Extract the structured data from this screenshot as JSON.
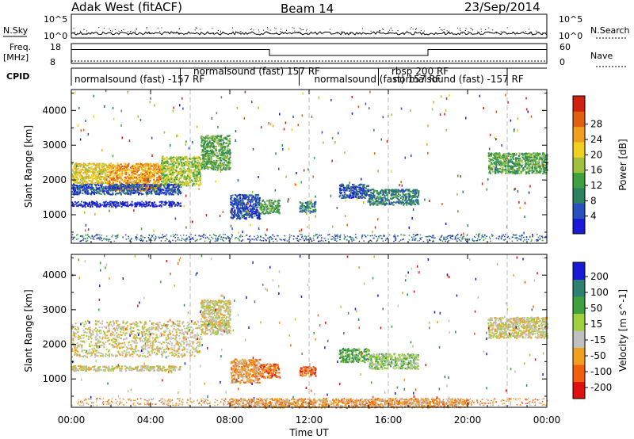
{
  "header": {
    "radar": "Adak West (fitACF)",
    "beam": "Beam 14",
    "date": "23/Sep/2014"
  },
  "panels": {
    "nsky_label": "N.Sky",
    "nsearch_label": "N.Search",
    "freq_label_1": "Freq.",
    "freq_label_2": "[MHz]",
    "nave_label": "Nave",
    "cpid_label": "CPID",
    "left_ticks_top": [
      "10^5",
      "10^0"
    ],
    "right_ticks_top": [
      "10^5",
      "10^0"
    ],
    "freq_ticks": [
      "18",
      "8"
    ],
    "nave_ticks": [
      "60",
      "0"
    ],
    "cpid_segments": [
      {
        "start": 0.0,
        "label": "normalsound (fast) -157 RF"
      },
      {
        "start": 5.5,
        "label": "normalsound (fast) 157 RF"
      },
      {
        "start": 11.5,
        "label": "normalsound (fast) 157 RF"
      },
      {
        "start": 15.5,
        "label": "rbsp 200 RF"
      },
      {
        "start": 15.5,
        "label": "normalsound (fast) -157 RF"
      }
    ],
    "freq_steps": [
      {
        "t0": 0,
        "t1": 10,
        "mhz": 15
      },
      {
        "t0": 10,
        "t1": 18,
        "mhz": 12
      },
      {
        "t0": 18,
        "t1": 24,
        "mhz": 15
      }
    ]
  },
  "chart_data": [
    {
      "type": "heatmap",
      "name": "power",
      "ylabel": "Slant Range [km]",
      "colorbar_label": "Power [dB]",
      "colorbar_ticks": [
        "4",
        "8",
        "12",
        "16",
        "20",
        "24",
        "28"
      ],
      "yticks": [
        "1000",
        "2000",
        "3000",
        "4000"
      ],
      "xlim": [
        0,
        24
      ],
      "ylim": [
        180,
        4600
      ],
      "colors": [
        "#1a1ad6",
        "#2a50c0",
        "#2e8060",
        "#40a040",
        "#a0c040",
        "#f0d020",
        "#f0a020",
        "#e06010",
        "#d02010"
      ],
      "regions": [
        {
          "t0": 0.0,
          "t1": 1.8,
          "r0": 1900,
          "r1": 2500,
          "v": 5
        },
        {
          "t0": 1.8,
          "t1": 4.5,
          "r0": 1700,
          "r1": 2500,
          "v": 6
        },
        {
          "t0": 4.5,
          "t1": 6.5,
          "r0": 1850,
          "r1": 2700,
          "v": 4
        },
        {
          "t0": 6.5,
          "t1": 8.0,
          "r0": 2300,
          "r1": 3300,
          "v": 3
        },
        {
          "t0": 0.0,
          "t1": 5.5,
          "r0": 1600,
          "r1": 1900,
          "v": 1
        },
        {
          "t0": 0.0,
          "t1": 5.5,
          "r0": 1250,
          "r1": 1400,
          "v": 0
        },
        {
          "t0": 8.0,
          "t1": 9.5,
          "r0": 900,
          "r1": 1600,
          "v": 1
        },
        {
          "t0": 9.5,
          "t1": 10.5,
          "r0": 1050,
          "r1": 1450,
          "v": 3
        },
        {
          "t0": 11.5,
          "t1": 12.3,
          "r0": 1100,
          "r1": 1400,
          "v": 2
        },
        {
          "t0": 13.5,
          "t1": 15.0,
          "r0": 1500,
          "r1": 1900,
          "v": 1
        },
        {
          "t0": 15.0,
          "t1": 17.5,
          "r0": 1300,
          "r1": 1750,
          "v": 2
        },
        {
          "t0": 21.0,
          "t1": 24.0,
          "r0": 2200,
          "r1": 2800,
          "v": 3
        }
      ]
    },
    {
      "type": "heatmap",
      "name": "velocity",
      "ylabel": "Slant Range [km]",
      "colorbar_label": "Velocity [m s^-1]",
      "colorbar_ticks": [
        "200",
        "100",
        "50",
        "15",
        "-15",
        "-50",
        "-100",
        "-200"
      ],
      "yticks": [
        "1000",
        "2000",
        "3000",
        "4000"
      ],
      "xticks": [
        "00:00",
        "04:00",
        "08:00",
        "12:00",
        "16:00",
        "20:00",
        "00:00"
      ],
      "xlabel": "Time UT",
      "xlim": [
        0,
        24
      ],
      "ylim": [
        180,
        4600
      ],
      "colors": [
        "#e01010",
        "#f06010",
        "#f0a020",
        "#c0c0c0",
        "#a0d040",
        "#40a040",
        "#2e8070",
        "#1a1ad6"
      ],
      "regions": [
        {
          "t0": 0.0,
          "t1": 6.5,
          "r0": 1650,
          "r1": 2700,
          "v": 3
        },
        {
          "t0": 6.5,
          "t1": 8.0,
          "r0": 2300,
          "r1": 3300,
          "v": 3
        },
        {
          "t0": 0.0,
          "t1": 5.5,
          "r0": 1250,
          "r1": 1400,
          "v": 3
        },
        {
          "t0": 8.0,
          "t1": 9.5,
          "r0": 900,
          "r1": 1600,
          "v": 2
        },
        {
          "t0": 9.5,
          "t1": 10.5,
          "r0": 1050,
          "r1": 1450,
          "v": 1
        },
        {
          "t0": 11.5,
          "t1": 12.3,
          "r0": 1100,
          "r1": 1400,
          "v": 1
        },
        {
          "t0": 13.5,
          "t1": 15.0,
          "r0": 1500,
          "r1": 1900,
          "v": 5
        },
        {
          "t0": 15.0,
          "t1": 17.5,
          "r0": 1300,
          "r1": 1750,
          "v": 4
        },
        {
          "t0": 21.0,
          "t1": 24.0,
          "r0": 2200,
          "r1": 2800,
          "v": 3
        },
        {
          "t0": 8.0,
          "t1": 20.0,
          "r0": 180,
          "r1": 450,
          "v": 2
        }
      ]
    }
  ]
}
